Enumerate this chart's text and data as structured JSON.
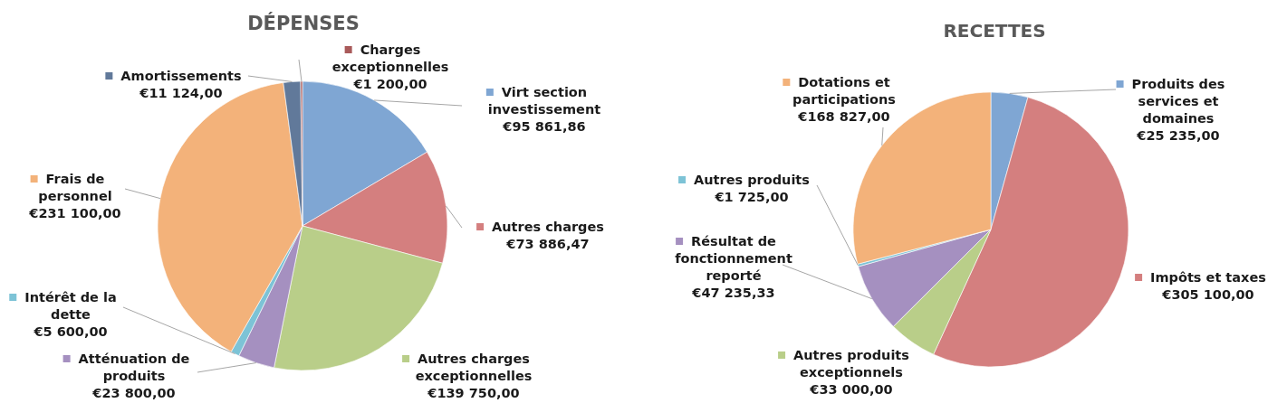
{
  "chart_data": [
    {
      "type": "pie",
      "title": "DÉPENSES",
      "categories": [
        "Virt section investissement",
        "Autres charges",
        "Autres charges exceptionnelles",
        "Atténuation de produits",
        "Intérêt de la dette",
        "Frais de personnel",
        "Amortissements",
        "Charges exceptionnelles"
      ],
      "values": [
        95861.86,
        73886.47,
        139750,
        23800,
        5600,
        231100,
        11124,
        1200
      ],
      "colors": [
        "#7fa6d3",
        "#d47f7f",
        "#b9ce89",
        "#a590c0",
        "#7dc3d6",
        "#f3b27a",
        "#61799a",
        "#a95a5a"
      ],
      "value_labels": [
        "€95 861,86",
        "€73 886,47",
        "€139 750,00",
        "€23 800,00",
        "€5 600,00",
        "€231 100,00",
        "€11 124,00",
        "€1 200,00"
      ],
      "legend": true
    },
    {
      "type": "pie",
      "title": "RECETTES",
      "categories": [
        "Produits des services et domaines",
        "Impôts et taxes",
        "Autres produits exceptionnels",
        "Résultat de fonctionnement reporté",
        "Autres produits",
        "Dotations et participations"
      ],
      "values": [
        25235,
        305100,
        33000,
        47235.33,
        1725,
        168827
      ],
      "colors": [
        "#7fa6d3",
        "#d47f7f",
        "#b9ce89",
        "#a590c0",
        "#7dc3d6",
        "#f3b27a"
      ],
      "value_labels": [
        "€25 235,00",
        "€305 100,00",
        "€33 000,00",
        "€47 235,33",
        "€1 725,00",
        "€168 827,00"
      ],
      "legend": true
    }
  ]
}
